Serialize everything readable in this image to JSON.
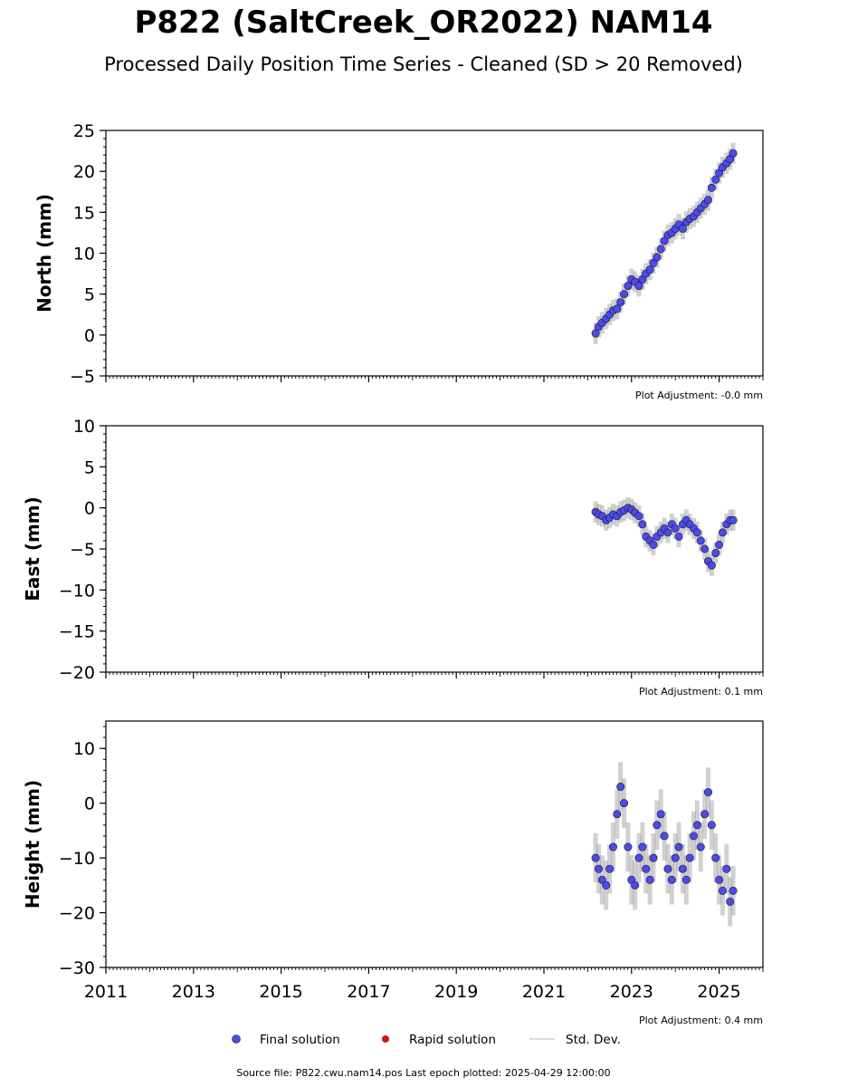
{
  "title": "P822 (SaltCreek_OR2022) NAM14",
  "subtitle": "Processed Daily Position Time Series - Cleaned (SD > 20 Removed)",
  "source_line": "Source file: P822.cwu.nam14.pos  Last epoch plotted: 2025-04-29 12:00:00",
  "legend": {
    "final": "Final solution",
    "rapid": "Rapid solution",
    "std": "Std. Dev."
  },
  "colors": {
    "final": "#4a4af0",
    "final_edge": "#1a1a1a",
    "rapid": "#dd1111",
    "std": "#999999"
  },
  "chart_data": [
    {
      "type": "scatter",
      "ylabel": "North (mm)",
      "ylim": [
        -5,
        25
      ],
      "yticks": [
        -5,
        0,
        5,
        10,
        15,
        20,
        25
      ],
      "xlim": [
        2011,
        2026
      ],
      "adjustment_label": "Plot Adjustment: -0.0 mm",
      "series": [
        {
          "name": "Final solution",
          "x": [
            2022.18,
            2022.25,
            2022.33,
            2022.42,
            2022.5,
            2022.58,
            2022.67,
            2022.75,
            2022.83,
            2022.92,
            2023.0,
            2023.08,
            2023.17,
            2023.25,
            2023.33,
            2023.42,
            2023.5,
            2023.58,
            2023.67,
            2023.75,
            2023.83,
            2023.92,
            2024.0,
            2024.08,
            2024.17,
            2024.25,
            2024.33,
            2024.42,
            2024.5,
            2024.58,
            2024.67,
            2024.75,
            2024.83,
            2024.92,
            2025.0,
            2025.08,
            2025.17,
            2025.25,
            2025.32
          ],
          "y": [
            0.2,
            1.0,
            1.5,
            2.0,
            2.5,
            3.0,
            3.2,
            4.0,
            5.0,
            6.0,
            6.8,
            6.5,
            6.0,
            6.8,
            7.5,
            8.0,
            8.8,
            9.5,
            10.5,
            11.5,
            12.2,
            12.5,
            13.0,
            13.5,
            13.0,
            13.8,
            14.2,
            14.5,
            15.0,
            15.5,
            16.0,
            16.5,
            18.0,
            19.0,
            19.8,
            20.5,
            21.0,
            21.5,
            22.2
          ]
        }
      ]
    },
    {
      "type": "scatter",
      "ylabel": "East (mm)",
      "ylim": [
        -20,
        10
      ],
      "yticks": [
        -20,
        -15,
        -10,
        -5,
        0,
        5,
        10
      ],
      "xlim": [
        2011,
        2026
      ],
      "adjustment_label": "Plot Adjustment: 0.1 mm",
      "series": [
        {
          "name": "Final solution",
          "x": [
            2022.18,
            2022.25,
            2022.33,
            2022.42,
            2022.5,
            2022.58,
            2022.67,
            2022.75,
            2022.83,
            2022.92,
            2023.0,
            2023.08,
            2023.17,
            2023.25,
            2023.33,
            2023.42,
            2023.5,
            2023.58,
            2023.67,
            2023.75,
            2023.83,
            2023.92,
            2024.0,
            2024.08,
            2024.17,
            2024.25,
            2024.33,
            2024.42,
            2024.5,
            2024.58,
            2024.67,
            2024.75,
            2024.83,
            2024.92,
            2025.0,
            2025.08,
            2025.17,
            2025.25,
            2025.32
          ],
          "y": [
            -0.5,
            -0.8,
            -1.0,
            -1.5,
            -1.2,
            -0.8,
            -1.0,
            -0.5,
            -0.3,
            0.0,
            -0.2,
            -0.6,
            -1.0,
            -2.0,
            -3.5,
            -4.0,
            -4.5,
            -3.5,
            -3.0,
            -2.5,
            -3.0,
            -2.0,
            -2.5,
            -3.5,
            -2.0,
            -1.5,
            -2.0,
            -2.5,
            -3.0,
            -4.0,
            -5.0,
            -6.5,
            -7.0,
            -5.5,
            -4.5,
            -3.0,
            -2.0,
            -1.5,
            -1.5
          ]
        }
      ]
    },
    {
      "type": "scatter",
      "ylabel": "Height (mm)",
      "ylim": [
        -30,
        15
      ],
      "yticks": [
        -30,
        -20,
        -10,
        0,
        10
      ],
      "xlim": [
        2011,
        2026
      ],
      "xticks": [
        2011,
        2013,
        2015,
        2017,
        2019,
        2021,
        2023,
        2025
      ],
      "adjustment_label": "Plot Adjustment: 0.4 mm",
      "series": [
        {
          "name": "Final solution",
          "x": [
            2022.18,
            2022.25,
            2022.33,
            2022.42,
            2022.5,
            2022.58,
            2022.67,
            2022.75,
            2022.83,
            2022.92,
            2023.0,
            2023.08,
            2023.17,
            2023.25,
            2023.33,
            2023.42,
            2023.5,
            2023.58,
            2023.67,
            2023.75,
            2023.83,
            2023.92,
            2024.0,
            2024.08,
            2024.17,
            2024.25,
            2024.33,
            2024.42,
            2024.5,
            2024.58,
            2024.67,
            2024.75,
            2024.83,
            2024.92,
            2025.0,
            2025.08,
            2025.17,
            2025.25,
            2025.32
          ],
          "y": [
            -10,
            -12,
            -14,
            -15,
            -12,
            -8,
            -2,
            3,
            0,
            -8,
            -14,
            -15,
            -10,
            -8,
            -12,
            -14,
            -10,
            -4,
            -2,
            -6,
            -12,
            -14,
            -10,
            -8,
            -12,
            -14,
            -10,
            -6,
            -4,
            -8,
            -2,
            2,
            -4,
            -10,
            -14,
            -16,
            -12,
            -18,
            -16
          ]
        }
      ]
    }
  ]
}
